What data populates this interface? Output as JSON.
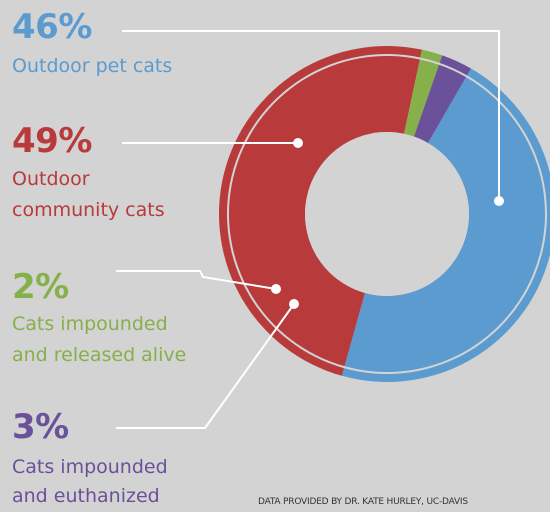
{
  "chart_data": {
    "type": "pie",
    "variant": "donut",
    "categories": [
      "Outdoor pet cats",
      "Outdoor community cats",
      "Cats impounded and released alive",
      "Cats impounded and euthanized"
    ],
    "values": [
      46,
      49,
      2,
      3
    ],
    "colors": [
      "#5b9bcf",
      "#b83a3a",
      "#86b04a",
      "#6a5199"
    ],
    "labels": [
      {
        "value": "46%",
        "lines": [
          "Outdoor pet cats"
        ]
      },
      {
        "value": "49%",
        "lines": [
          "Outdoor",
          "community cats"
        ]
      },
      {
        "value": "2%",
        "lines": [
          "Cats impounded",
          "and released alive"
        ]
      },
      {
        "value": "3%",
        "lines": [
          "Cats impounded",
          "and euthanized"
        ]
      }
    ],
    "annotation": "DATA PROVIDED BY DR. KATE HURLEY, UC-DAVIS"
  }
}
